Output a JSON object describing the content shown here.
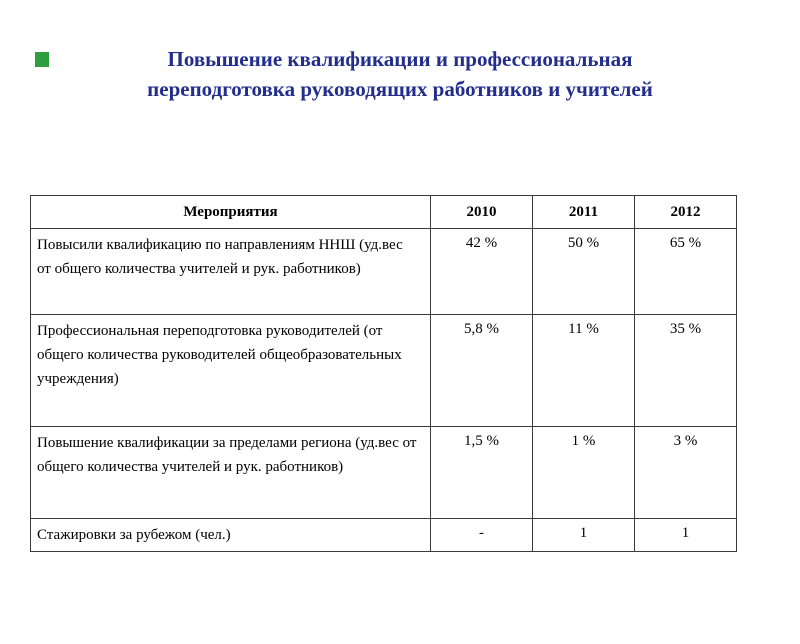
{
  "slide": {
    "title_line1": "Повышение квалификации и профессиональная",
    "title_line2": "переподготовка руководящих работников и учителей",
    "title_color": "#232e8c",
    "corner_square_color": "#2f9e41",
    "table_border_color": "#3a3a3a"
  },
  "chart_data": {
    "type": "table",
    "columns": [
      "Мероприятия",
      "2010",
      "2011",
      "2012"
    ],
    "rows": [
      {
        "label": "Повысили квалификацию по направлениям ННШ (уд.вес от общего количества учителей и рук. работников)",
        "values": [
          "42  %",
          "50  %",
          "65 %"
        ]
      },
      {
        "label": "Профессиональная переподготовка руководителей (от общего количества руководителей общеобразовательных учреждения)",
        "values": [
          "5,8  %",
          "11 %",
          "35 %"
        ]
      },
      {
        "label": "Повышение квалификации за пределами региона (уд.вес от общего количества учителей и рук. работников)",
        "values": [
          "1,5 %",
          "1 %",
          "3 %"
        ]
      },
      {
        "label": "Стажировки за рубежом (чел.)",
        "values": [
          "-",
          "1",
          "1"
        ]
      }
    ]
  }
}
